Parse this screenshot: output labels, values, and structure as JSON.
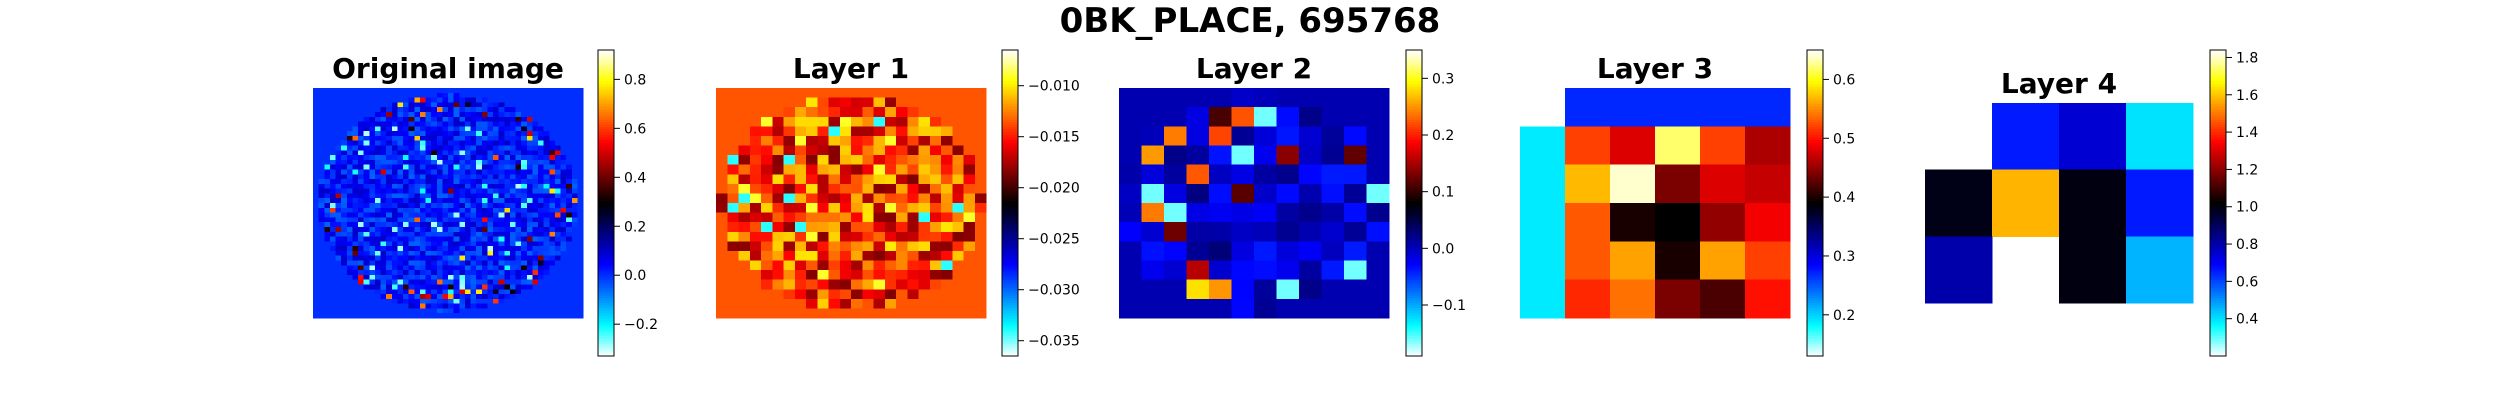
{
  "figure": {
    "title": "0BK_PLACE, 695768"
  },
  "colormap": {
    "name": "custom-cyan-blue-black-red-yellow",
    "stops": [
      {
        "t": 0.0,
        "color": "#ffffff"
      },
      {
        "t": 0.1,
        "color": "#00ffff"
      },
      {
        "t": 0.3,
        "color": "#0000ff"
      },
      {
        "t": 0.5,
        "color": "#000000"
      },
      {
        "t": 0.7,
        "color": "#ff0000"
      },
      {
        "t": 0.9,
        "color": "#ffff00"
      },
      {
        "t": 1.0,
        "color": "#ffffff"
      }
    ]
  },
  "chart_data": [
    {
      "type": "heatmap",
      "title": "Original image",
      "grid": [
        48,
        48
      ],
      "shape": "ellipse",
      "background_value": 0.0,
      "vmin": -0.33,
      "vmax": 0.92,
      "colorbar_ticks": [
        -0.2,
        0.0,
        0.2,
        0.4,
        0.6,
        0.8
      ],
      "colorbar_tick_labels": [
        "−0.2",
        "0.0",
        "0.2",
        "0.4",
        "0.6",
        "0.8"
      ],
      "values_note": "noisy voxel intensities, mostly -0.05..0.1 with sparse hot voxels near the rim"
    },
    {
      "type": "heatmap",
      "title": "Layer 1",
      "grid": [
        24,
        24
      ],
      "shape": "ellipse",
      "background_value": -0.0135,
      "vmin": -0.0365,
      "vmax": -0.0065,
      "colorbar_ticks": [
        -0.035,
        -0.03,
        -0.025,
        -0.02,
        -0.015,
        -0.01
      ],
      "colorbar_tick_labels": [
        "−0.035",
        "−0.030",
        "−0.025",
        "−0.020",
        "−0.015",
        "−0.010"
      ],
      "values_note": "activations mostly -0.018..-0.011 inside the brain mask"
    },
    {
      "type": "heatmap",
      "title": "Layer 2",
      "grid": [
        12,
        12
      ],
      "shape": "ellipse",
      "background_value": 0.005,
      "vmin": -0.19,
      "vmax": 0.35,
      "colorbar_ticks": [
        -0.1,
        0.0,
        0.1,
        0.2,
        0.3
      ],
      "colorbar_tick_labels": [
        "−0.1",
        "0.0",
        "0.1",
        "0.2",
        "0.3"
      ],
      "values_note": "mostly -0.05..0.03 with a few strong positive cells"
    },
    {
      "type": "heatmap",
      "title": "Layer 3",
      "grid": [
        6,
        6
      ],
      "vmin": 0.13,
      "vmax": 0.65,
      "colorbar_ticks": [
        0.2,
        0.3,
        0.4,
        0.5,
        0.6
      ],
      "colorbar_tick_labels": [
        "0.2",
        "0.3",
        "0.4",
        "0.5",
        "0.6"
      ],
      "values": [
        [
          null,
          0.27,
          0.27,
          0.27,
          0.27,
          0.27
        ],
        [
          0.19,
          0.52,
          0.48,
          0.62,
          0.52,
          0.46
        ],
        [
          0.19,
          0.57,
          0.64,
          0.44,
          0.48,
          0.47
        ],
        [
          0.19,
          0.53,
          0.4,
          0.39,
          0.45,
          0.49
        ],
        [
          0.19,
          0.53,
          0.56,
          0.4,
          0.56,
          0.52
        ],
        [
          0.19,
          0.51,
          0.54,
          0.44,
          0.42,
          0.5
        ]
      ]
    },
    {
      "type": "heatmap",
      "title": "Layer 4",
      "grid": [
        3,
        4
      ],
      "vmin": 0.2,
      "vmax": 1.84,
      "colorbar_ticks": [
        0.4,
        0.6,
        0.8,
        1.0,
        1.2,
        1.4,
        1.6,
        1.8
      ],
      "colorbar_tick_labels": [
        "0.4",
        "0.6",
        "0.8",
        "1.0",
        "1.2",
        "1.4",
        "1.6",
        "1.8"
      ],
      "values": [
        [
          null,
          0.66,
          0.75,
          0.4
        ],
        [
          0.99,
          1.58,
          1.0,
          0.66
        ],
        [
          0.8,
          null,
          1.0,
          0.46
        ]
      ]
    }
  ]
}
